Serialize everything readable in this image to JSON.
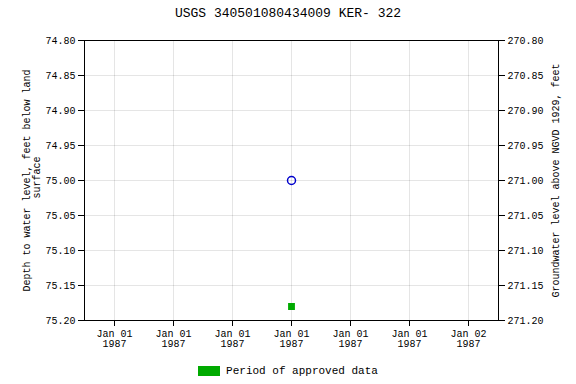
{
  "chart_data": {
    "type": "scatter",
    "title": "USGS 340501080434009 KER- 322",
    "ylabel": "Depth to water level, feet below land\n surface",
    "y2label": "Groundwater level above NGVD 1929, feet",
    "categories": [
      "Jan 01\n1987",
      "Jan 01\n1987",
      "Jan 01\n1987",
      "Jan 01\n1987",
      "Jan 01\n1987",
      "Jan 01\n1987",
      "Jan 02\n1987"
    ],
    "series": [
      {
        "color": "#0000cc",
        "marker": "open_circle",
        "values": [
          null,
          null,
          null,
          75.0,
          null,
          null,
          null
        ]
      },
      {
        "name": "Period of approved data",
        "color": "#00aa00",
        "marker": "square",
        "values": [
          null,
          null,
          null,
          75.18,
          null,
          null,
          null
        ]
      }
    ],
    "ylim": [
      75.2,
      74.8
    ],
    "yticks": [
      {
        "value": 74.8,
        "label": "74.80"
      },
      {
        "value": 74.85,
        "label": "74.85"
      },
      {
        "value": 74.9,
        "label": "74.90"
      },
      {
        "value": 74.95,
        "label": "74.95"
      },
      {
        "value": 75.0,
        "label": "75.00"
      },
      {
        "value": 75.05,
        "label": "75.05"
      },
      {
        "value": 75.1,
        "label": "75.10"
      },
      {
        "value": 75.15,
        "label": "75.15"
      },
      {
        "value": 75.2,
        "label": "75.20"
      }
    ],
    "y2lim": [
      271.2,
      270.8
    ],
    "y2ticks": [
      {
        "value": 271.2,
        "label": "271.20"
      },
      {
        "value": 271.15,
        "label": "271.15"
      },
      {
        "value": 271.1,
        "label": "271.10"
      },
      {
        "value": 271.05,
        "label": "271.05"
      },
      {
        "value": 271.0,
        "label": "271.00"
      },
      {
        "value": 270.95,
        "label": "270.95"
      },
      {
        "value": 270.9,
        "label": "270.90"
      },
      {
        "value": 270.85,
        "label": "270.85"
      },
      {
        "value": 270.8,
        "label": "270.80"
      }
    ],
    "grid": true,
    "legend": "bottom"
  }
}
